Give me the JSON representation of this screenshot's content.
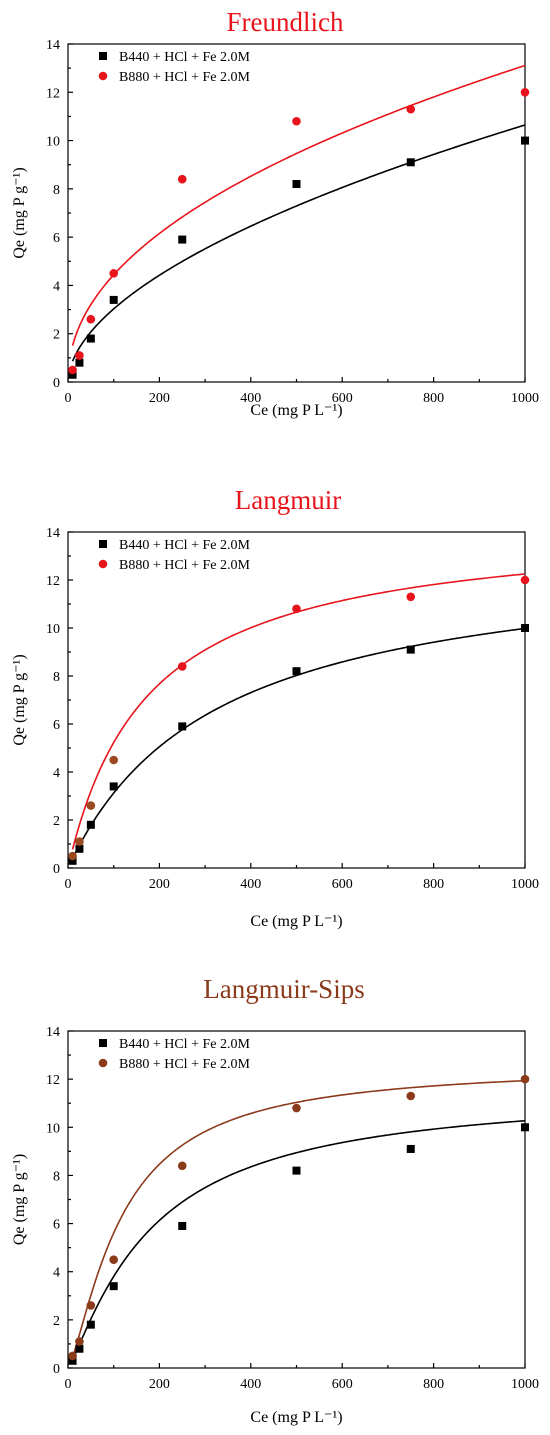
{
  "chart_data": [
    {
      "type": "scatter",
      "title": "Freundlich",
      "title_color": "#e8141b",
      "xlabel": "Ce (mg P L⁻¹)",
      "ylabel": "Qe (mg P g⁻¹)",
      "xlim": [
        0,
        1000
      ],
      "ylim": [
        0,
        14
      ],
      "xticks": [
        0,
        200,
        400,
        600,
        800,
        1000
      ],
      "yticks": [
        0,
        2,
        4,
        6,
        8,
        10,
        12,
        14
      ],
      "grid": false,
      "legend_position": "top-left",
      "fit_model": "freundlich",
      "series": [
        {
          "name": "B440 + HCl + Fe 2.0M",
          "marker": "square",
          "marker_color": "#000000",
          "line_color": "#000000",
          "x": [
            10,
            25,
            50,
            100,
            250,
            500,
            750,
            1000
          ],
          "y": [
            0.3,
            0.8,
            1.8,
            3.4,
            5.9,
            8.2,
            9.1,
            10.0
          ],
          "fit_params": {
            "K": 0.245,
            "n": 0.546
          }
        },
        {
          "name": "B880 + HCl + Fe 2.0M",
          "marker": "circle",
          "marker_color": "#e8141b",
          "line_color": "#e8141b",
          "x": [
            10,
            25,
            50,
            100,
            250,
            500,
            750,
            1000
          ],
          "y": [
            0.5,
            1.1,
            2.6,
            4.5,
            8.4,
            10.8,
            11.3,
            12.0
          ],
          "fit_params": {
            "K": 0.51,
            "n": 0.47
          }
        }
      ]
    },
    {
      "type": "scatter",
      "title": "Langmuir",
      "title_color": "#e8141b",
      "xlabel": "Ce (mg P L⁻¹)",
      "ylabel": "Qe (mg P g⁻¹)",
      "xlim": [
        0,
        1000
      ],
      "ylim": [
        0,
        14
      ],
      "xticks": [
        0,
        200,
        400,
        600,
        800,
        1000
      ],
      "yticks": [
        0,
        2,
        4,
        6,
        8,
        10,
        12,
        14
      ],
      "grid": false,
      "legend_position": "top-left",
      "fit_model": "langmuir",
      "series": [
        {
          "name": "B440 + HCl + Fe 2.0M",
          "marker": "square",
          "marker_color": "#000000",
          "line_color": "#000000",
          "x": [
            10,
            25,
            50,
            100,
            250,
            500,
            750,
            1000
          ],
          "y": [
            0.3,
            0.8,
            1.8,
            3.4,
            5.9,
            8.2,
            9.1,
            10.0
          ],
          "fit_params": {
            "qmax": 13.2,
            "K": 0.0031
          }
        },
        {
          "name": "B880 + HCl + Fe 2.0M",
          "marker": "circle",
          "marker_color": "#e8141b",
          "line_color": "#e8141b",
          "point_colors": [
            "#9a4a1e",
            "#9a4a1e",
            "#9a4a1e",
            "#9a4a1e",
            "#e8141b",
            "#e8141b",
            "#e8141b",
            "#e8141b"
          ],
          "x": [
            10,
            25,
            50,
            100,
            250,
            500,
            750,
            1000
          ],
          "y": [
            0.5,
            1.1,
            2.6,
            4.5,
            8.4,
            10.8,
            11.3,
            12.0
          ],
          "fit_params": {
            "qmax": 14.4,
            "K": 0.0057
          }
        }
      ]
    },
    {
      "type": "scatter",
      "title": "Langmuir-Sips",
      "title_color": "#8b3a1a",
      "xlabel": "Ce (mg P L⁻¹)",
      "ylabel": "Qe (mg P g⁻¹)",
      "xlim": [
        0,
        1000
      ],
      "ylim": [
        0,
        14
      ],
      "xticks": [
        0,
        200,
        400,
        600,
        800,
        1000
      ],
      "yticks": [
        0,
        2,
        4,
        6,
        8,
        10,
        12,
        14
      ],
      "grid": false,
      "legend_position": "top-left",
      "fit_model": "sips",
      "series": [
        {
          "name": "B440 + HCl + Fe 2.0M",
          "marker": "square",
          "marker_color": "#000000",
          "line_color": "#000000",
          "x": [
            10,
            25,
            50,
            100,
            250,
            500,
            750,
            1000
          ],
          "y": [
            0.3,
            0.8,
            1.8,
            3.4,
            5.9,
            8.2,
            9.1,
            10.0
          ],
          "fit_params": {
            "qmax": 11.6,
            "K": 0.0055,
            "n": 1.2
          }
        },
        {
          "name": "B880 + HCl + Fe 2.0M",
          "marker": "circle",
          "marker_color": "#8b3a1a",
          "line_color": "#8b3a1a",
          "x": [
            10,
            25,
            50,
            100,
            250,
            500,
            750,
            1000
          ],
          "y": [
            0.5,
            1.1,
            2.6,
            4.5,
            8.4,
            10.8,
            11.3,
            12.0
          ],
          "fit_params": {
            "qmax": 12.6,
            "K": 0.0085,
            "n": 1.35
          }
        }
      ]
    }
  ]
}
